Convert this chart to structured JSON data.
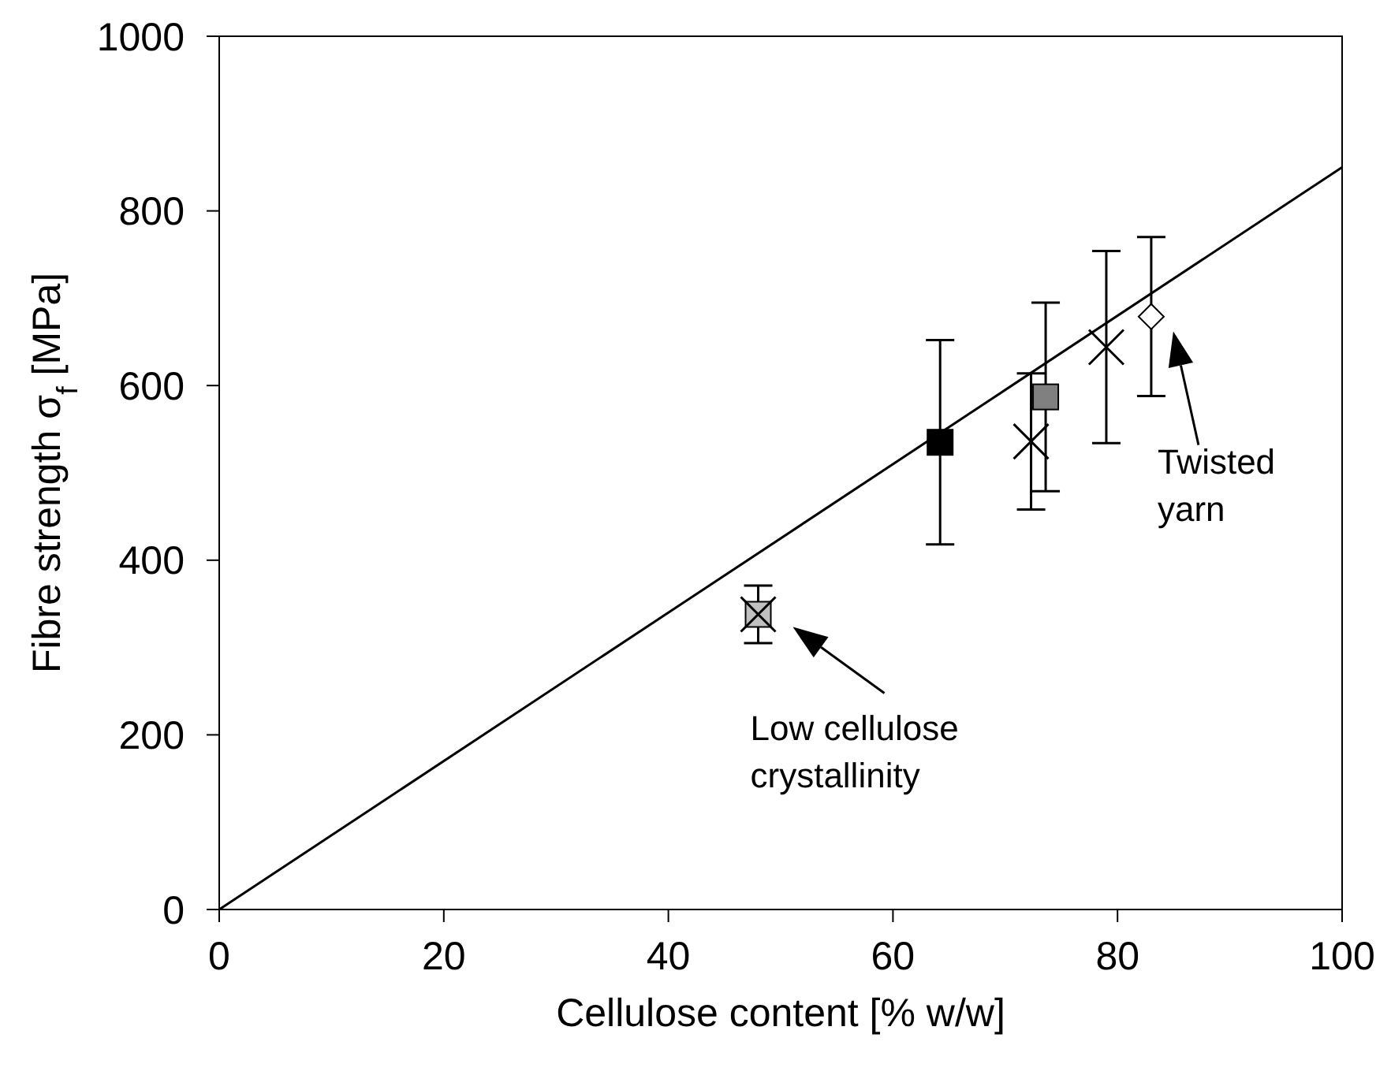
{
  "chart_data": {
    "type": "scatter",
    "xlabel": "Cellulose content [% w/w]",
    "ylabel": "Fibre strength  σ$_{f}$ [MPa]",
    "xlim": [
      0,
      100
    ],
    "xticks": [
      0,
      20,
      40,
      60,
      80,
      100
    ],
    "ylim": [
      0,
      1000
    ],
    "yticks": [
      0,
      200,
      400,
      600,
      800,
      1000
    ],
    "grid": false,
    "series": [
      {
        "type": "line",
        "x": [
          0,
          100
        ],
        "values": [
          0,
          850
        ],
        "color": "#000000",
        "marker": "none",
        "line_style": "solid"
      },
      {
        "x": [
          48
        ],
        "values": [
          338
        ],
        "errors": [
          33
        ],
        "color": "#c0c0c0",
        "marker": "square"
      },
      {
        "x": [
          48
        ],
        "values": [
          338
        ],
        "color": "#000000",
        "marker": "cross"
      },
      {
        "x": [
          64.2
        ],
        "values": [
          535
        ],
        "errors": [
          117
        ],
        "color": "#000000",
        "marker": "square"
      },
      {
        "x": [
          72.3
        ],
        "values": [
          536
        ],
        "errors": [
          78
        ],
        "color": "#000000",
        "marker": "cross"
      },
      {
        "x": [
          73.6
        ],
        "values": [
          587
        ],
        "errors": [
          108
        ],
        "color": "#808080",
        "marker": "square"
      },
      {
        "x": [
          79
        ],
        "values": [
          644
        ],
        "errors": [
          110
        ],
        "color": "#000000",
        "marker": "cross"
      },
      {
        "x": [
          83
        ],
        "values": [
          679
        ],
        "errors": [
          91
        ],
        "color": "#ffffff",
        "marker": "diamond"
      }
    ],
    "annotations": [
      {
        "text": "Low cellulose crystallinity",
        "x": 48,
        "y": 338
      },
      "Twisted yarn"
    ]
  }
}
